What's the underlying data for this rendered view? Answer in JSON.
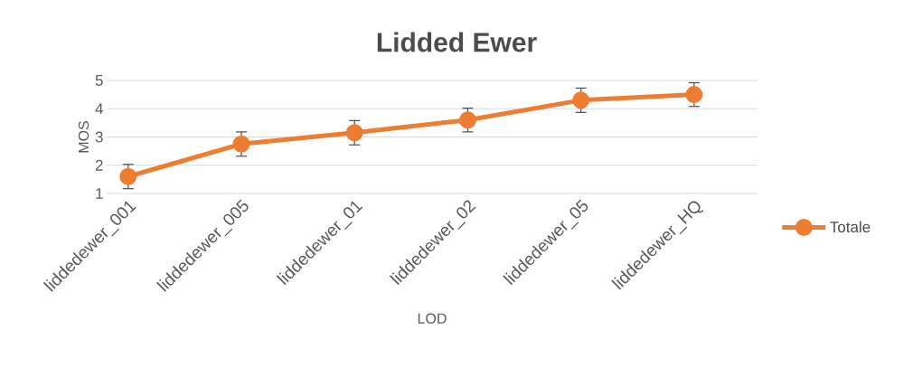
{
  "chart_data": {
    "type": "line",
    "title": "Lidded Ewer",
    "xlabel": "LOD",
    "ylabel": "MOS",
    "categories": [
      "liddedewer_001",
      "liddedewer_005",
      "liddedewer_01",
      "liddedewer_02",
      "liddedewer_05",
      "liddedewer_HQ"
    ],
    "series": [
      {
        "name": "Totale",
        "color": "#ed7d31",
        "values": [
          1.6,
          2.75,
          3.15,
          3.6,
          4.3,
          4.5
        ],
        "errors": [
          0.43,
          0.43,
          0.43,
          0.42,
          0.43,
          0.42
        ]
      }
    ],
    "ylim": [
      1,
      5
    ],
    "yticks": [
      1,
      2,
      3,
      4,
      5
    ],
    "grid": "y",
    "legend": "right",
    "marker": "circle",
    "line_style": "solid"
  }
}
